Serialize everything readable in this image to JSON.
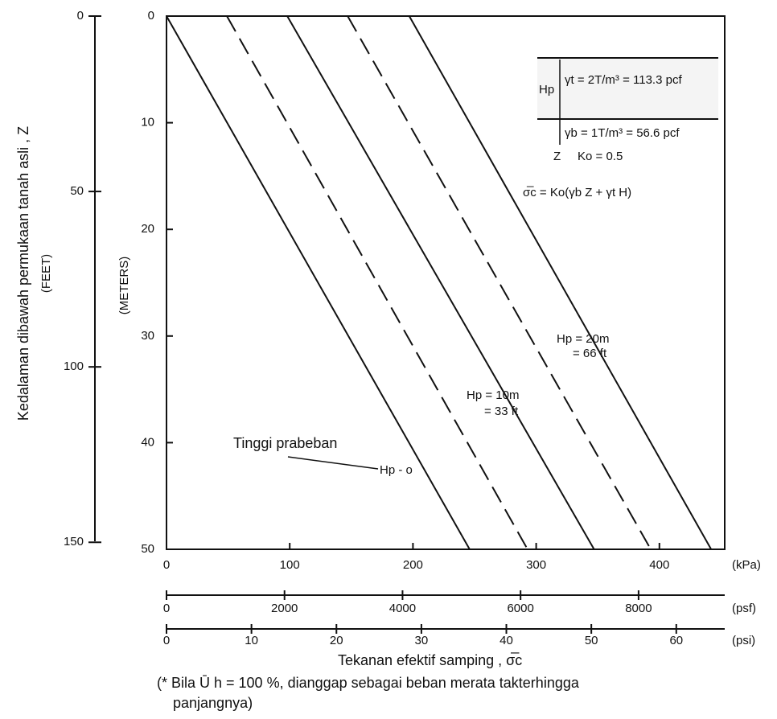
{
  "chart_data": {
    "type": "line",
    "y_label": "Kedalaman dibawah permukaan tanah asli , Z",
    "y_unit": "(METERS)",
    "y2_unit": "(FEET)",
    "x_label": "Tekanan efektif samping , σ̅c",
    "x_unit": "(kPa)",
    "xlim": [
      0,
      453
    ],
    "xticks": [
      0,
      100,
      200,
      300,
      400
    ],
    "ylim": [
      0,
      50
    ],
    "y_inverted": true,
    "yticks": [
      0,
      10,
      20,
      30,
      40,
      50
    ],
    "y2lim": [
      0,
      152
    ],
    "y2ticks": [
      0,
      50,
      100,
      150
    ],
    "x2": {
      "unit": "(psf)",
      "lim": [
        0,
        9460
      ],
      "ticks": [
        0,
        2000,
        4000,
        6000,
        8000
      ]
    },
    "x3": {
      "unit": "(psi)",
      "lim": [
        0,
        65.7
      ],
      "ticks": [
        0,
        10,
        20,
        30,
        40,
        50,
        60
      ]
    },
    "series": [
      {
        "color": "#111111",
        "dashed": false,
        "x": [
          0,
          246
        ],
        "y": [
          0,
          50
        ]
      },
      {
        "color": "#111111",
        "dashed": true,
        "x": [
          49,
          293
        ],
        "y": [
          0,
          50
        ]
      },
      {
        "color": "#111111",
        "dashed": false,
        "x": [
          98,
          347
        ],
        "y": [
          0,
          50
        ]
      },
      {
        "color": "#111111",
        "dashed": true,
        "x": [
          147,
          393
        ],
        "y": [
          0,
          50
        ]
      },
      {
        "color": "#111111",
        "dashed": false,
        "x": [
          197,
          442
        ],
        "y": [
          0,
          50
        ]
      }
    ],
    "annotations": [
      "Hp = 20m",
      "= 66 ft",
      "Hp = 10m",
      "= 33 ft",
      "Tinggi prabeban",
      "Hp - o"
    ],
    "inset": [
      "Hp",
      "γt = 2T/m³ = 113.3 pcf",
      "γb = 1T/m³ = 56.6 pcf",
      "Z",
      "Ko = 0.5",
      "σ̅c = Ko(γb Z + γt H)"
    ],
    "footnote": [
      "(* Bila  Ū h = 100 %, dianggap sebagai beban merata takterhingga",
      "panjangnya)"
    ]
  }
}
